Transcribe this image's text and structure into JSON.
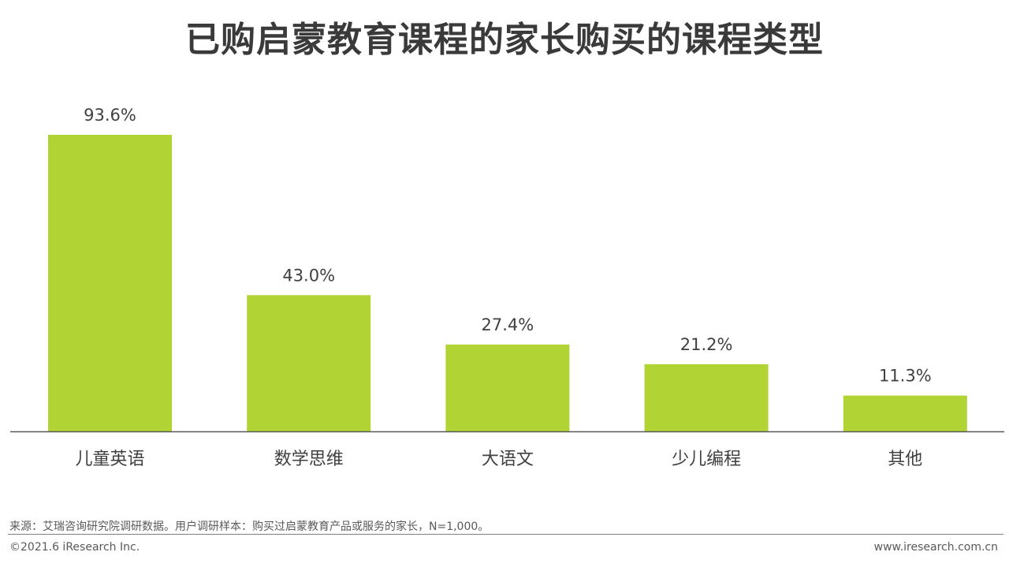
{
  "title": "已购启蒙教育课程的家长购买的课程类型",
  "chart_data": {
    "type": "bar",
    "categories": [
      "儿童英语",
      "数学思维",
      "大语文",
      "少儿编程",
      "其他"
    ],
    "values": [
      93.6,
      43.0,
      27.4,
      21.2,
      11.3
    ],
    "value_labels": [
      "93.6%",
      "43.0%",
      "27.4%",
      "21.2%",
      "11.3%"
    ],
    "ylim": [
      0,
      100
    ],
    "grid": false,
    "bar_color": "#b1d334"
  },
  "source": "来源：艾瑞咨询研究院调研数据。用户调研样本：购买过启蒙教育产品或服务的家长，N=1,000。",
  "copyright": "©2021.6 iResearch Inc.",
  "website": "www.iresearch.com.cn"
}
